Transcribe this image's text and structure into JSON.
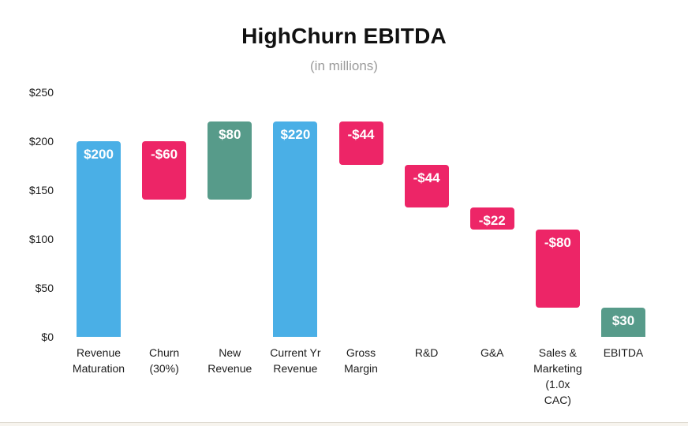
{
  "chart_data": {
    "type": "bar",
    "variant": "waterfall",
    "title": "HighChurn EBITDA",
    "subtitle": "(in millions)",
    "xlabel": "",
    "ylabel": "",
    "ylim": [
      0,
      250
    ],
    "y_ticks": [
      "$0",
      "$50",
      "$100",
      "$150",
      "$200",
      "$250"
    ],
    "grid": false,
    "legend": false,
    "palette": {
      "total": "#4AAFE6",
      "decrease": "#ED2567",
      "increase": "#579B8A"
    },
    "steps": [
      {
        "label": "Revenue Maturation",
        "label_lines": [
          "Revenue",
          "Maturation"
        ],
        "value": 200,
        "start": 0,
        "end": 200,
        "kind": "total",
        "value_label": "$200"
      },
      {
        "label": "Churn (30%)",
        "label_lines": [
          "Churn",
          "(30%)"
        ],
        "value": -60,
        "start": 200,
        "end": 140,
        "kind": "decrease",
        "value_label": "-$60"
      },
      {
        "label": "New Revenue",
        "label_lines": [
          "New",
          "Revenue"
        ],
        "value": 80,
        "start": 140,
        "end": 220,
        "kind": "increase",
        "value_label": "$80"
      },
      {
        "label": "Current Yr Revenue",
        "label_lines": [
          "Current Yr",
          "Revenue"
        ],
        "value": 220,
        "start": 0,
        "end": 220,
        "kind": "total",
        "value_label": "$220"
      },
      {
        "label": "Gross Margin",
        "label_lines": [
          "Gross",
          "Margin"
        ],
        "value": -44,
        "start": 220,
        "end": 176,
        "kind": "decrease",
        "value_label": "-$44"
      },
      {
        "label": "R&D",
        "label_lines": [
          "R&D"
        ],
        "value": -44,
        "start": 176,
        "end": 132,
        "kind": "decrease",
        "value_label": "-$44"
      },
      {
        "label": "G&A",
        "label_lines": [
          "G&A"
        ],
        "value": -22,
        "start": 132,
        "end": 110,
        "kind": "decrease",
        "value_label": "-$22"
      },
      {
        "label": "Sales & Marketing (1.0x CAC)",
        "label_lines": [
          "Sales &",
          "Marketing",
          "(1.0x",
          "CAC)"
        ],
        "value": -80,
        "start": 110,
        "end": 30,
        "kind": "decrease",
        "value_label": "-$80"
      },
      {
        "label": "EBITDA",
        "label_lines": [
          "EBITDA"
        ],
        "value": 30,
        "start": 0,
        "end": 30,
        "kind": "increase",
        "value_label": "$30"
      }
    ]
  }
}
